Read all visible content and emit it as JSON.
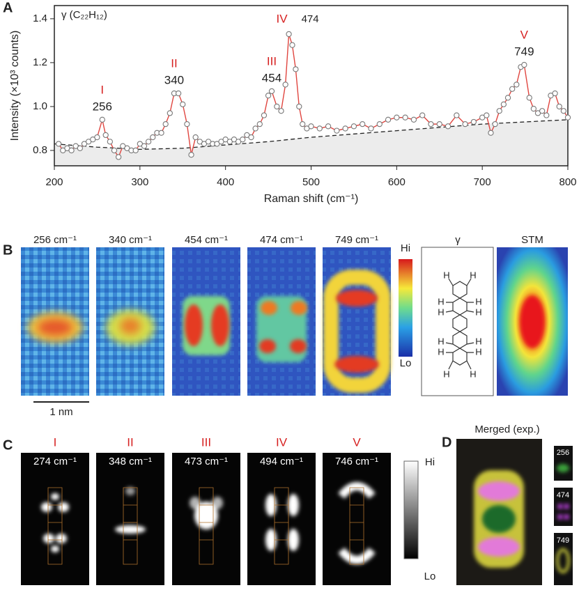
{
  "panels": {
    "a": "A",
    "b": "B",
    "c": "C",
    "d": "D"
  },
  "chart_data": {
    "type": "line",
    "title": "γ (C₂₂H₁₂)",
    "xlabel": "Raman shift (cm⁻¹)",
    "ylabel": "Intensity (×10³ counts)",
    "xlim": [
      200,
      800
    ],
    "xticks": [
      200,
      300,
      400,
      500,
      600,
      700,
      800
    ],
    "ylim": [
      0.73,
      1.46
    ],
    "yticks": [
      0.8,
      {
        "value": 1,
        "label": "1.0"
      },
      1.2,
      1.4
    ],
    "x": [
      205,
      210,
      215,
      220,
      225,
      230,
      235,
      240,
      245,
      250,
      256,
      260,
      265,
      270,
      275,
      280,
      285,
      290,
      295,
      300,
      305,
      310,
      315,
      320,
      325,
      330,
      335,
      340,
      345,
      350,
      355,
      360,
      365,
      370,
      375,
      380,
      385,
      390,
      395,
      400,
      405,
      410,
      415,
      420,
      425,
      430,
      435,
      440,
      445,
      450,
      454,
      460,
      465,
      470,
      474,
      478,
      482,
      486,
      490,
      495,
      500,
      510,
      520,
      530,
      540,
      550,
      560,
      570,
      580,
      590,
      600,
      610,
      620,
      630,
      640,
      650,
      660,
      670,
      680,
      690,
      700,
      705,
      710,
      715,
      720,
      725,
      730,
      735,
      740,
      745,
      749,
      755,
      760,
      765,
      770,
      775,
      780,
      785,
      790,
      795,
      800
    ],
    "series": [
      {
        "color": "#e0453f",
        "values": [
          0.83,
          0.8,
          0.81,
          0.8,
          0.82,
          0.81,
          0.83,
          0.84,
          0.85,
          0.86,
          0.94,
          0.87,
          0.84,
          0.8,
          0.77,
          0.82,
          0.81,
          0.8,
          0.8,
          0.83,
          0.82,
          0.84,
          0.86,
          0.88,
          0.88,
          0.92,
          0.97,
          1.06,
          1.06,
          1.01,
          0.92,
          0.78,
          0.86,
          0.84,
          0.83,
          0.84,
          0.83,
          0.83,
          0.84,
          0.85,
          0.84,
          0.85,
          0.84,
          0.85,
          0.87,
          0.86,
          0.9,
          0.92,
          0.96,
          1.05,
          1.07,
          1.0,
          0.98,
          1.1,
          1.33,
          1.28,
          1.17,
          1.0,
          0.92,
          0.9,
          0.91,
          0.9,
          0.91,
          0.89,
          0.9,
          0.91,
          0.92,
          0.9,
          0.92,
          0.94,
          0.95,
          0.95,
          0.94,
          0.96,
          0.92,
          0.92,
          0.91,
          0.96,
          0.92,
          0.93,
          0.95,
          0.96,
          0.88,
          0.92,
          0.98,
          1.01,
          1.04,
          1.08,
          1.1,
          1.18,
          1.19,
          1.04,
          0.99,
          0.97,
          0.98,
          0.96,
          1.05,
          1.06,
          1.0,
          0.98,
          0.95
        ]
      }
    ],
    "baseline": {
      "x": [
        200,
        250,
        300,
        350,
        400,
        450,
        500,
        550,
        600,
        650,
        700,
        750,
        800
      ],
      "values": [
        0.83,
        0.815,
        0.805,
        0.81,
        0.825,
        0.84,
        0.86,
        0.875,
        0.89,
        0.905,
        0.92,
        0.93,
        0.94
      ]
    },
    "annotations": [
      {
        "label": "I",
        "shift": 256
      },
      {
        "label": "II",
        "shift": 340
      },
      {
        "label": "III",
        "shift": 454
      },
      {
        "label": "IV",
        "shift": 474
      },
      {
        "label": "V",
        "shift": 749
      }
    ]
  },
  "panel_b": {
    "maps": [
      "256 cm⁻¹",
      "340 cm⁻¹",
      "454 cm⁻¹",
      "474 cm⁻¹",
      "749 cm⁻¹"
    ],
    "hi": "Hi",
    "lo": "Lo",
    "molecule": "γ",
    "stm": "STM",
    "scale": "1 nm",
    "atoms": [
      "H",
      "H",
      "H",
      "H",
      "H",
      "H",
      "H",
      "H",
      "H",
      "H",
      "H",
      "H"
    ]
  },
  "panel_c": {
    "modes": [
      "I",
      "II",
      "III",
      "IV",
      "V"
    ],
    "maps": [
      "274 cm⁻¹",
      "348 cm⁻¹",
      "473 cm⁻¹",
      "494 cm⁻¹",
      "746 cm⁻¹"
    ],
    "hi": "Hi",
    "lo": "Lo"
  },
  "panel_d": {
    "title": "Merged (exp.)",
    "insets": [
      "256",
      "474",
      "749"
    ]
  }
}
